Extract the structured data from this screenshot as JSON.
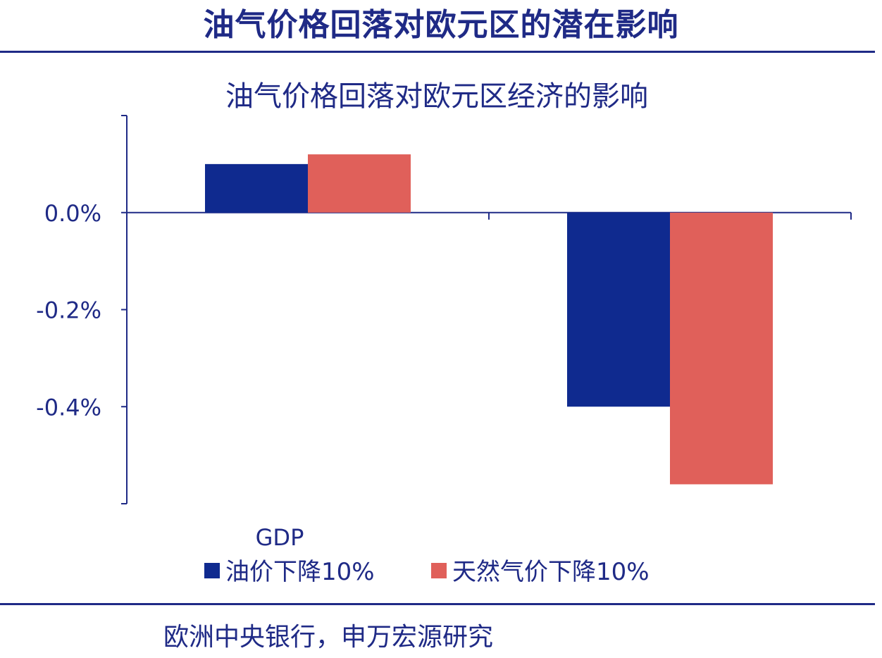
{
  "slide_title": "油气价格回落对欧元区的潜在影响",
  "source": "欧洲中央银行，申万宏源研究",
  "colors": {
    "title": "#1f2a86",
    "axis": "#1f2a86",
    "series_1": "#0f2a8f",
    "series_2": "#e0605a"
  },
  "chart_data": {
    "type": "bar",
    "title": "油气价格回落对欧元区经济的影响",
    "categories": [
      "GDP",
      ""
    ],
    "series": [
      {
        "name": "油价下降10%",
        "values": [
          0.1,
          -0.4
        ]
      },
      {
        "name": "天然气价下降10%",
        "values": [
          0.12,
          -0.56
        ]
      }
    ],
    "ylim": [
      -0.6,
      0.2
    ],
    "yticks": [
      0.0,
      -0.2,
      -0.4
    ],
    "ytick_labels": [
      "0.0%",
      "-0.2%",
      "-0.4%"
    ],
    "legend": "bottom",
    "grid": false
  }
}
